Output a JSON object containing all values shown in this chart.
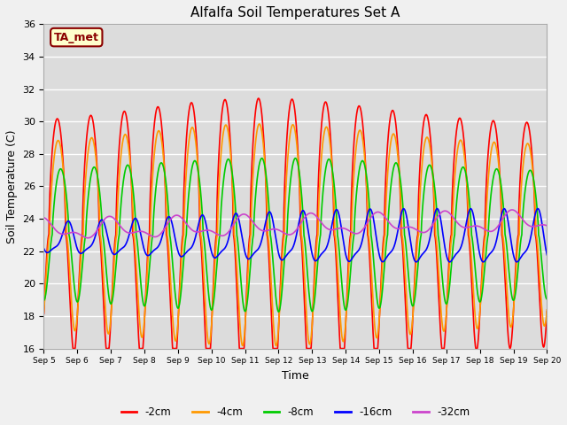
{
  "title": "Alfalfa Soil Temperatures Set A",
  "xlabel": "Time",
  "ylabel": "Soil Temperature (C)",
  "ylim": [
    16,
    36
  ],
  "xlim": [
    0,
    15
  ],
  "bg_color": "#dcdcdc",
  "fig_color": "#f0f0f0",
  "annotation_text": "TA_met",
  "annotation_bg": "#ffffcc",
  "annotation_border": "#8B0000",
  "annotation_text_color": "#8B0000",
  "x_tick_labels": [
    "Sep 5",
    "Sep 6",
    "Sep 7",
    "Sep 8",
    "Sep 9",
    "Sep 10",
    "Sep 11",
    "Sep 12",
    "Sep 13",
    "Sep 14",
    "Sep 15",
    "Sep 16",
    "Sep 17",
    "Sep 18",
    "Sep 19",
    "Sep 20"
  ],
  "series": {
    "-2cm": {
      "color": "#ff0000",
      "lw": 1.2
    },
    "-4cm": {
      "color": "#ff9900",
      "lw": 1.2
    },
    "-8cm": {
      "color": "#00cc00",
      "lw": 1.2
    },
    "-16cm": {
      "color": "#0000ff",
      "lw": 1.2
    },
    "-32cm": {
      "color": "#cc44cc",
      "lw": 1.2
    }
  },
  "legend_order": [
    "-2cm",
    "-4cm",
    "-8cm",
    "-16cm",
    "-32cm"
  ]
}
